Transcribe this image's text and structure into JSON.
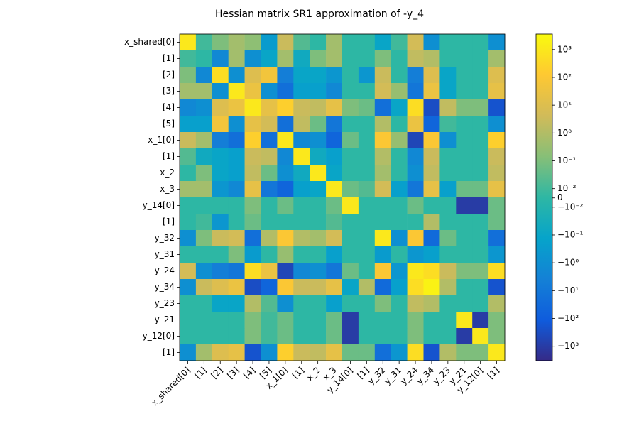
{
  "chart_data": {
    "type": "heatmap",
    "title": "Hessian matrix SR1 approximation of -y_4",
    "rows": [
      "x_shared[0]",
      "[1]",
      "[2]",
      "[3]",
      "[4]",
      "[5]",
      "x_1[0]",
      "[1]",
      "x_2",
      "x_3",
      "y_14[0]",
      "[1]",
      "y_32",
      "y_31",
      "y_24",
      "y_34",
      "y_23",
      "y_21",
      "y_12[0]",
      "[1]"
    ],
    "columns": [
      "x_shared[0]",
      "[1]",
      "[2]",
      "[3]",
      "[4]",
      "[5]",
      "x_1[0]",
      "[1]",
      "x_2",
      "x_3",
      "y_14[0]",
      "[1]",
      "y_32",
      "y_31",
      "y_24",
      "y_34",
      "y_23",
      "y_21",
      "y_12[0]",
      "[1]"
    ],
    "values": [
      [
        1000,
        0.01,
        0.1,
        0.5,
        0.2,
        -0.3,
        3,
        0.02,
        0,
        0.5,
        0,
        0,
        -0.1,
        0.01,
        5,
        -1,
        0,
        0,
        0,
        -1
      ],
      [
        0.01,
        0,
        -2,
        0.5,
        -1,
        -0.1,
        0.5,
        -0.05,
        0.1,
        0.5,
        0,
        0,
        0.1,
        0,
        2,
        1,
        0,
        0,
        0,
        0.5
      ],
      [
        0.1,
        -2,
        500,
        -1,
        10,
        50,
        -5,
        -0.1,
        -0.1,
        -0.5,
        0,
        -0.5,
        3,
        0,
        -5,
        10,
        -0.1,
        0,
        0,
        10
      ],
      [
        0.5,
        0.5,
        -1,
        1000,
        30,
        -1,
        -20,
        -0.2,
        -0.2,
        -2,
        0,
        0,
        5,
        0.3,
        -10,
        30,
        -0.1,
        0,
        0,
        20
      ],
      [
        -2,
        -1,
        10,
        30,
        1000,
        20,
        200,
        3,
        2,
        20,
        0.1,
        0.05,
        -20,
        -0.1,
        500,
        -300,
        2,
        0.1,
        0.1,
        -200
      ],
      [
        -0.2,
        -0.2,
        50,
        -1,
        20,
        5,
        -20,
        2,
        0.05,
        -10,
        0,
        0,
        1,
        0,
        30,
        -50,
        0.01,
        0,
        0,
        -1
      ],
      [
        3,
        0.5,
        -5,
        -20,
        200,
        -20,
        1000,
        -2,
        -1,
        -50,
        0.05,
        0,
        100,
        0.3,
        -500,
        100,
        -1,
        0,
        0,
        200
      ],
      [
        0.02,
        -0.05,
        -0.1,
        -0.2,
        3,
        2,
        -2,
        1000,
        -0.05,
        -0.2,
        0,
        0,
        1,
        0,
        -2,
        3,
        0,
        0,
        0,
        3
      ],
      [
        0,
        0.1,
        -0.1,
        -0.2,
        2,
        0.05,
        -1,
        -0.05,
        1000,
        -0.1,
        0,
        0,
        0.5,
        0,
        -1,
        2,
        0,
        0,
        0,
        2
      ],
      [
        0.5,
        0.5,
        -0.5,
        -2,
        20,
        -10,
        -50,
        -0.2,
        -0.1,
        1000,
        0.05,
        0.02,
        5,
        -0.2,
        -10,
        20,
        -0.2,
        0.05,
        0.05,
        20
      ],
      [
        0,
        0,
        0,
        0,
        0.1,
        0,
        0.05,
        0,
        0,
        0.05,
        1000,
        0,
        0,
        0,
        0.05,
        0,
        0,
        -1000,
        -1000,
        0.05
      ],
      [
        0,
        0.01,
        -0.5,
        0,
        0.05,
        0,
        0,
        0,
        0,
        0.02,
        0,
        0,
        0,
        0,
        0,
        1,
        0,
        0,
        0,
        0.05
      ],
      [
        -1,
        0.1,
        3,
        5,
        -20,
        1,
        100,
        1,
        0.5,
        5,
        0,
        0,
        1000,
        -1,
        100,
        -30,
        0.05,
        0,
        0,
        -20
      ],
      [
        0,
        0,
        0,
        0.1,
        -0.3,
        0,
        0.3,
        0,
        0,
        -0.2,
        0,
        0,
        -0.3,
        0,
        -0.5,
        -0.2,
        0,
        0,
        0,
        -0.5
      ],
      [
        5,
        -1,
        -5,
        -10,
        500,
        30,
        -500,
        -2,
        -1,
        -10,
        0.05,
        0,
        100,
        -0.5,
        1000,
        500,
        3,
        0.1,
        0.1,
        500
      ],
      [
        -1,
        3,
        10,
        30,
        -300,
        -50,
        100,
        3,
        3,
        20,
        -0.1,
        1,
        -30,
        -0.2,
        500,
        2000,
        1,
        0,
        0,
        -200
      ],
      [
        0,
        0,
        -0.1,
        -0.1,
        1,
        0.02,
        -1,
        0,
        0,
        -0.2,
        0,
        0,
        0.1,
        0,
        2,
        1,
        0,
        0,
        0,
        1
      ],
      [
        0,
        0,
        0,
        0,
        0.1,
        0.01,
        0.05,
        0,
        0,
        0.05,
        -1000,
        0,
        0,
        0,
        0.1,
        0,
        0,
        1000,
        -1000,
        0.1
      ],
      [
        0,
        0,
        0,
        0,
        0.1,
        0.01,
        0.05,
        0,
        0,
        0.05,
        -1000,
        0,
        0,
        0,
        0.1,
        0,
        0,
        -1000,
        1000,
        0.1
      ],
      [
        -1,
        0.5,
        10,
        20,
        -200,
        -1,
        200,
        3,
        2,
        20,
        0.05,
        0.05,
        -20,
        -0.5,
        500,
        -200,
        1,
        0.1,
        0.1,
        1000
      ]
    ],
    "scale": "symlog",
    "linthresh": 0.01,
    "linscale": 0.3,
    "clim": [
      -3300,
      3600
    ],
    "colormap": [
      "#352a87",
      "#0f5cdd",
      "#1481d6",
      "#06a4ca",
      "#2eb7a4",
      "#87bf77",
      "#d1bb59",
      "#fec832",
      "#f9fb0e"
    ],
    "cticks": [
      {
        "value": 1000,
        "label": "10³"
      },
      {
        "value": 100,
        "label": "10²"
      },
      {
        "value": 10,
        "label": "10¹"
      },
      {
        "value": 1,
        "label": "10⁰"
      },
      {
        "value": 0.1,
        "label": "10⁻¹"
      },
      {
        "value": 0.01,
        "label": "10⁻²"
      },
      0,
      {
        "value": -0.01,
        "label": "−10⁻²"
      },
      {
        "value": -0.1,
        "label": "−10⁻¹"
      },
      {
        "value": -1,
        "label": "−10⁰"
      },
      {
        "value": -10,
        "label": "−10¹"
      },
      {
        "value": -100,
        "label": "−10²"
      },
      {
        "value": -1000,
        "label": "−10³"
      }
    ]
  }
}
